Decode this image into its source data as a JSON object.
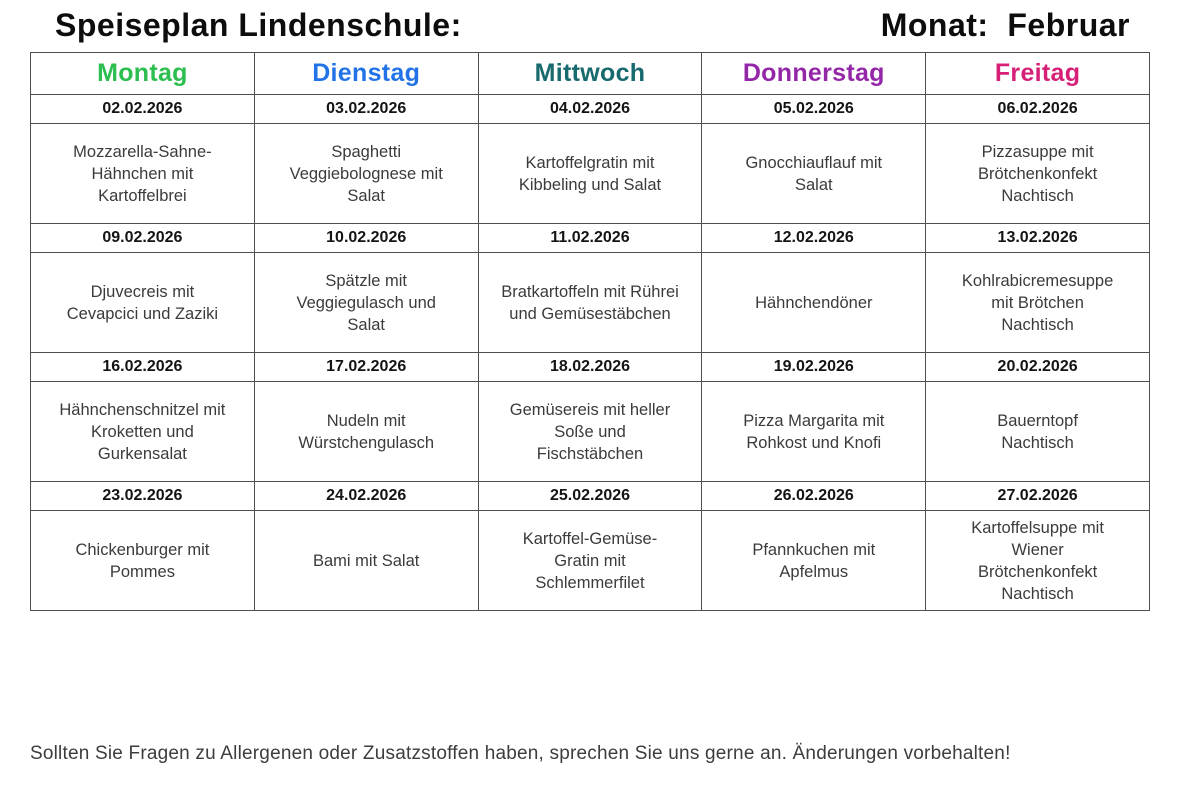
{
  "page": {
    "title": "Speiseplan Lindenschule:",
    "month_label": "Monat:  Februar",
    "footer": "Sollten Sie Fragen zu Allergenen oder Zusatzstoffen haben, sprechen Sie uns gerne an. Änderungen vorbehalten!"
  },
  "table": {
    "days": [
      {
        "label": "Montag",
        "color": "#2cbe4e"
      },
      {
        "label": "Dienstag",
        "color": "#2273e8"
      },
      {
        "label": "Mittwoch",
        "color": "#176a6e"
      },
      {
        "label": "Donnerstag",
        "color": "#9327a8"
      },
      {
        "label": "Freitag",
        "color": "#d62077"
      }
    ],
    "weeks": [
      {
        "dates": [
          "02.02.2026",
          "03.02.2026",
          "04.02.2026",
          "05.02.2026",
          "06.02.2026"
        ],
        "meals": [
          "Mozzarella-Sahne-\nHähnchen mit\nKartoffelbrei",
          "Spaghetti\nVeggiebolognese mit\nSalat",
          "Kartoffelgratin mit\nKibbeling und Salat",
          "Gnocchiauflauf mit\nSalat",
          "Pizzasuppe mit\nBrötchenkonfekt\nNachtisch"
        ]
      },
      {
        "dates": [
          "09.02.2026",
          "10.02.2026",
          "11.02.2026",
          "12.02.2026",
          "13.02.2026"
        ],
        "meals": [
          "Djuvecreis mit\nCevapcici und Zaziki",
          "Spätzle mit\nVeggiegulasch und\nSalat",
          "Bratkartoffeln mit Rührei\nund Gemüsestäbchen",
          "Hähnchendöner",
          "Kohlrabicremesuppe\nmit Brötchen\nNachtisch"
        ]
      },
      {
        "dates": [
          "16.02.2026",
          "17.02.2026",
          "18.02.2026",
          "19.02.2026",
          "20.02.2026"
        ],
        "meals": [
          "Hähnchenschnitzel mit\nKroketten und\nGurkensalat",
          "Nudeln mit\nWürstchengulasch",
          "Gemüsereis mit heller\nSoße und\nFischstäbchen",
          "Pizza Margarita mit\nRohkost und Knofi",
          "Bauerntopf\nNachtisch"
        ]
      },
      {
        "dates": [
          "23.02.2026",
          "24.02.2026",
          "25.02.2026",
          "26.02.2026",
          "27.02.2026"
        ],
        "meals": [
          "Chickenburger mit\nPommes",
          "Bami mit Salat",
          "Kartoffel-Gemüse-\nGratin mit\nSchlemmerfilet",
          "Pfannkuchen mit\nApfelmus",
          "Kartoffelsuppe mit\nWiener\nBrötchenkonfekt\nNachtisch"
        ]
      }
    ]
  }
}
